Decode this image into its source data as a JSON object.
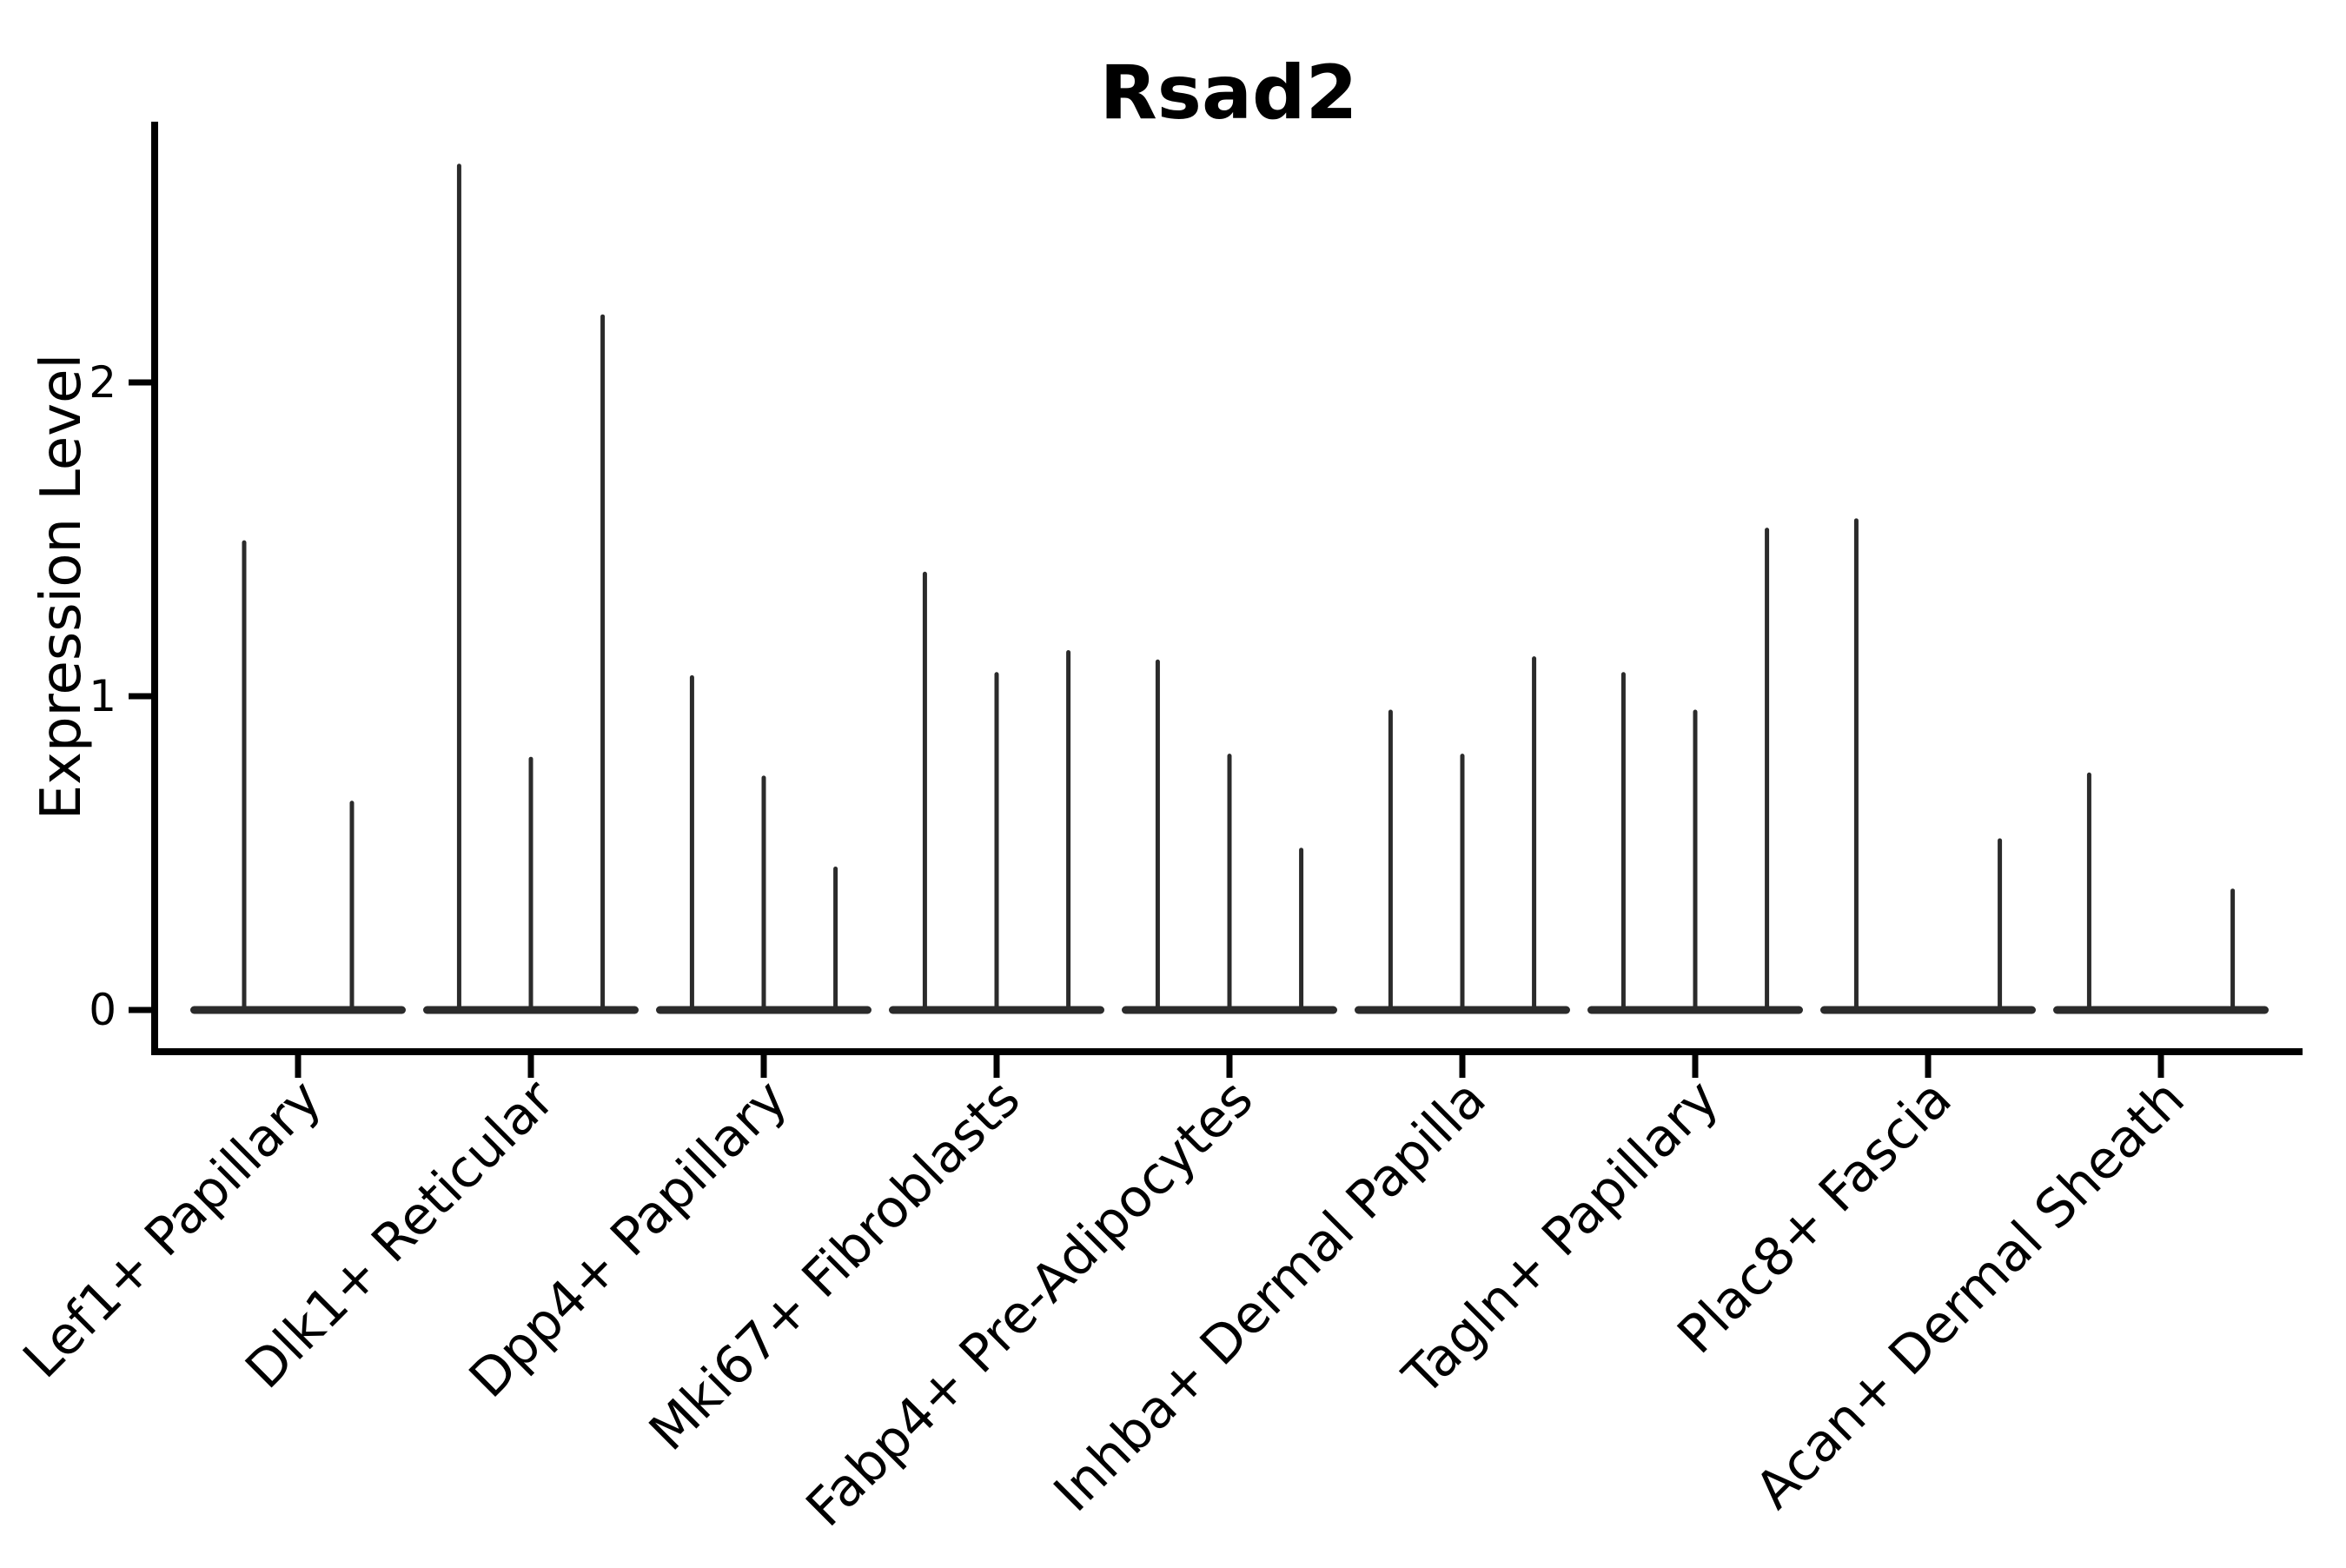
{
  "chart_data": {
    "type": "violin",
    "title": "Rsad2",
    "ylabel": "Expression Level",
    "xlabel": "",
    "grid": false,
    "legend": "none",
    "yticks": [
      {
        "label": "0",
        "value": 0
      },
      {
        "label": "1",
        "value": 1
      },
      {
        "label": "2",
        "value": 2
      }
    ],
    "ylim": [
      -0.13,
      2.83
    ],
    "categories": [
      "Lef1+ Papillary",
      "Dlk1+ Reticular",
      "Dpp4+ Papillary",
      "Mki67+ Fibroblasts",
      "Fabp4+ Pre-Adipocytes",
      "Inhba+ Dermal Papilla",
      "Tagln+ Papillary",
      "Plac8+ Fascia",
      "Acan+ Dermal Sheath"
    ],
    "groups": [
      {
        "label": "Lef1+ Papillary",
        "spikes": [
          {
            "pos": 0.25,
            "value": 1.49
          },
          {
            "pos": 0.75,
            "value": 0.66
          }
        ]
      },
      {
        "label": "Dlk1+ Reticular",
        "spikes": [
          {
            "pos": 0.167,
            "value": 2.69
          },
          {
            "pos": 0.5,
            "value": 0.8
          },
          {
            "pos": 0.833,
            "value": 2.21
          }
        ]
      },
      {
        "label": "Dpp4+ Papillary",
        "spikes": [
          {
            "pos": 0.167,
            "value": 1.06
          },
          {
            "pos": 0.5,
            "value": 0.74
          },
          {
            "pos": 0.833,
            "value": 0.45
          }
        ]
      },
      {
        "label": "Mki67+ Fibroblasts",
        "spikes": [
          {
            "pos": 0.167,
            "value": 1.39
          },
          {
            "pos": 0.5,
            "value": 1.07
          },
          {
            "pos": 0.833,
            "value": 1.14
          }
        ]
      },
      {
        "label": "Fabp4+ Pre-Adipocytes",
        "spikes": [
          {
            "pos": 0.167,
            "value": 1.11
          },
          {
            "pos": 0.5,
            "value": 0.81
          },
          {
            "pos": 0.833,
            "value": 0.51
          }
        ]
      },
      {
        "label": "Inhba+ Dermal Papilla",
        "spikes": [
          {
            "pos": 0.167,
            "value": 0.95
          },
          {
            "pos": 0.5,
            "value": 0.81
          },
          {
            "pos": 0.833,
            "value": 1.12
          }
        ]
      },
      {
        "label": "Tagln+ Papillary",
        "spikes": [
          {
            "pos": 0.167,
            "value": 1.07
          },
          {
            "pos": 0.5,
            "value": 0.95
          },
          {
            "pos": 0.833,
            "value": 1.53
          }
        ]
      },
      {
        "label": "Plac8+ Fascia",
        "spikes": [
          {
            "pos": 0.167,
            "value": 1.56
          },
          {
            "pos": 0.833,
            "value": 0.54
          }
        ]
      },
      {
        "label": "Acan+ Dermal Sheath",
        "spikes": [
          {
            "pos": 0.167,
            "value": 0.75
          },
          {
            "pos": 0.833,
            "value": 0.38
          }
        ]
      }
    ],
    "colors": {
      "violin": "#2b2b2b",
      "axis": "#000000",
      "background": "#ffffff"
    }
  }
}
